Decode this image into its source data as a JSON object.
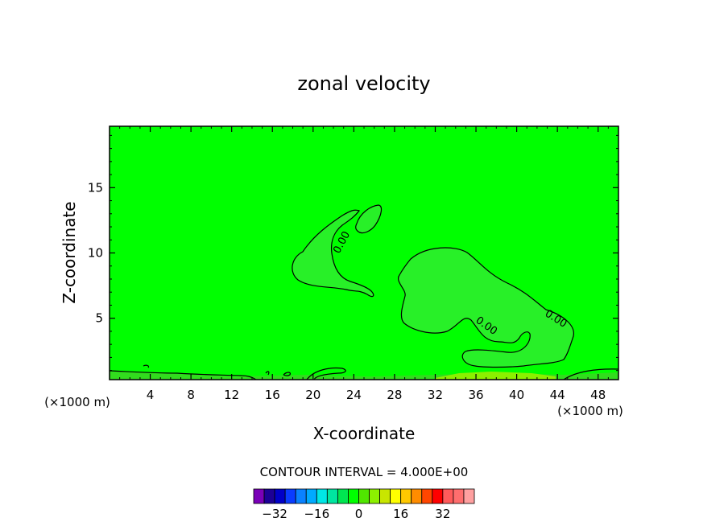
{
  "chart_data": {
    "type": "heatmap",
    "title": "zonal velocity",
    "xlabel": "X-coordinate",
    "ylabel": "Z-coordinate",
    "x_unit_label": "(×1000 m)",
    "y_unit_label": "(×1000 m)",
    "xlim": [
      0,
      50
    ],
    "ylim": [
      0.3,
      19.7
    ],
    "x_ticks": [
      4,
      8,
      12,
      16,
      20,
      24,
      28,
      32,
      36,
      40,
      44,
      48
    ],
    "y_ticks": [
      5,
      10,
      15
    ],
    "contour_interval_text": "CONTOUR INTERVAL = 4.000E+00",
    "contour_labels": [
      "0.00",
      "0.00",
      "0.00"
    ],
    "colorbar": {
      "colors": [
        "#7a00b8",
        "#1c0096",
        "#0000c8",
        "#0a3cff",
        "#0a82ff",
        "#00aaff",
        "#00e6e6",
        "#00e6a0",
        "#00e650",
        "#00ff00",
        "#50e600",
        "#8cf000",
        "#c8e600",
        "#ffff00",
        "#ffc800",
        "#ff8c00",
        "#ff4600",
        "#ff0000",
        "#ff5a5a",
        "#ff6e6e",
        "#ffa0a0"
      ],
      "tick_labels": [
        "-32",
        "-16",
        "0",
        "16",
        "32"
      ],
      "tick_values": [
        -32,
        -16,
        0,
        16,
        32
      ]
    },
    "grid": false,
    "legend": "bottom-center"
  }
}
